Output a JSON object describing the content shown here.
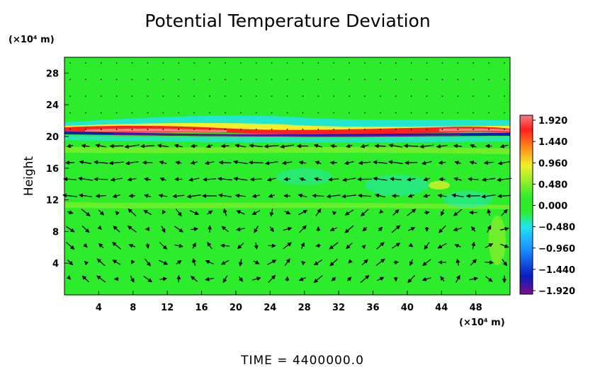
{
  "chart_data": {
    "type": "heatmap",
    "title": "Potential Temperature Deviation",
    "ylabel": "Height",
    "x_unit": "(×10⁴ m)",
    "y_unit": "(×10⁴ m)",
    "xlim": [
      0,
      52
    ],
    "ylim": [
      0,
      30
    ],
    "x_ticks": [
      4,
      8,
      12,
      16,
      20,
      24,
      28,
      32,
      36,
      40,
      44,
      48
    ],
    "y_ticks": [
      4,
      8,
      12,
      16,
      20,
      24,
      28
    ],
    "colorbar": {
      "ticks": [
        1.92,
        1.44,
        0.96,
        0.48,
        0.0,
        -0.48,
        -0.96,
        -1.44,
        -1.92
      ],
      "tick_labels": [
        "1.920",
        "1.440",
        "0.960",
        "0.480",
        "0.000",
        "−0.480",
        "−0.960",
        "−1.440",
        "−1.920"
      ],
      "range": [
        -1.92,
        1.92
      ],
      "colors": [
        "#7a0f8a",
        "#0a1bbf",
        "#1a8fff",
        "#21e7f0",
        "#2cec2c",
        "#9ef02a",
        "#f2f02a",
        "#ff8a1a",
        "#ff1f1f",
        "#f08080"
      ]
    },
    "overlay": "wind vectors",
    "background_color": "#2cec2c"
  },
  "footer": {
    "time_text": "TIME  =  4400000.0"
  }
}
